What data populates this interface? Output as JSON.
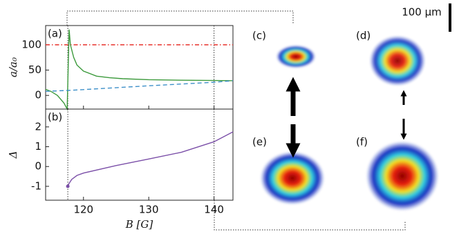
{
  "chart_data": [
    {
      "type": "line",
      "panel_label": "(a)",
      "ylabel": "a/a₀",
      "xlim": [
        114.2,
        142.9
      ],
      "ylim": [
        -27,
        138
      ],
      "xticks": [
        120,
        130,
        140
      ],
      "yticks": [
        0,
        50,
        100
      ],
      "vlines": [
        117.6,
        140
      ],
      "x": [
        114.2,
        115,
        116,
        117,
        117.5,
        117.8,
        118,
        118.5,
        119,
        120,
        122,
        124,
        126,
        130,
        135,
        140,
        142.9
      ],
      "series": [
        {
          "color": "#e8302a",
          "style": "dashdot",
          "values": [
            100,
            100,
            100,
            100,
            100,
            100,
            100,
            100,
            100,
            100,
            100,
            100,
            100,
            100,
            100,
            100,
            100
          ]
        },
        {
          "color": "#3c9a3c",
          "style": "solid",
          "values": [
            12,
            8,
            0,
            -15,
            -27,
            130,
            100,
            75,
            60,
            48,
            38,
            35,
            33,
            31,
            30,
            29.5,
            29
          ]
        },
        {
          "color": "#3c8fc8",
          "style": "dashed",
          "values": [
            8,
            8.5,
            9,
            9.5,
            9.8,
            10,
            10.1,
            10.4,
            10.8,
            11.5,
            13,
            14.5,
            16,
            19,
            22.5,
            26,
            29
          ]
        }
      ]
    },
    {
      "type": "line",
      "panel_label": "(b)",
      "ylabel": "Δ",
      "xlabel": "B [G]",
      "xlim": [
        114.2,
        142.9
      ],
      "ylim": [
        -1.7,
        2.9
      ],
      "xticks": [
        120,
        130,
        140
      ],
      "yticks": [
        -1,
        0,
        1,
        2
      ],
      "vlines": [
        117.6,
        140
      ],
      "x": [
        117.6,
        117.8,
        118.2,
        119,
        120,
        125,
        130,
        135,
        140,
        142.9
      ],
      "series": [
        {
          "color": "#7b4fa8",
          "style": "solid",
          "values": [
            -1,
            -0.85,
            -0.65,
            -0.45,
            -0.33,
            0.05,
            0.38,
            0.72,
            1.25,
            1.75
          ]
        }
      ]
    }
  ],
  "images": [
    {
      "label": "(c)"
    },
    {
      "label": "(d)"
    },
    {
      "label": "(e)"
    },
    {
      "label": "(f)"
    }
  ],
  "scale_bar": "100 μm"
}
